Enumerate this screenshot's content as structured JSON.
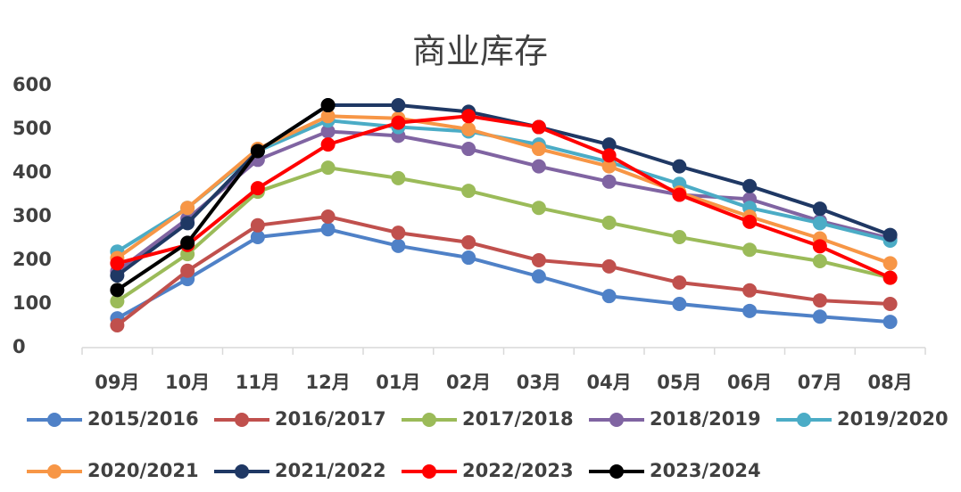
{
  "chart_data": {
    "type": "line",
    "title": "商业库存",
    "categories": [
      "09月",
      "10月",
      "11月",
      "12月",
      "01月",
      "02月",
      "03月",
      "04月",
      "05月",
      "06月",
      "07月",
      "08月"
    ],
    "series": [
      {
        "name": "2015/2016",
        "color": "#4f81c7",
        "values": [
          67,
          157,
          253,
          271,
          233,
          206,
          163,
          118,
          100,
          84,
          71,
          59
        ]
      },
      {
        "name": "2016/2017",
        "color": "#c0504d",
        "values": [
          51,
          176,
          280,
          300,
          263,
          241,
          200,
          186,
          149,
          131,
          108,
          100
        ]
      },
      {
        "name": "2017/2018",
        "color": "#9bbb59",
        "values": [
          106,
          214,
          357,
          412,
          388,
          359,
          320,
          286,
          253,
          224,
          198,
          160
        ]
      },
      {
        "name": "2018/2019",
        "color": "#8064a2",
        "values": [
          175,
          295,
          430,
          495,
          485,
          455,
          415,
          380,
          350,
          340,
          290,
          250
        ]
      },
      {
        "name": "2019/2020",
        "color": "#4bacc6",
        "values": [
          220,
          320,
          450,
          520,
          505,
          495,
          465,
          425,
          375,
          320,
          285,
          245
        ]
      },
      {
        "name": "2020/2021",
        "color": "#f79646",
        "values": [
          205,
          320,
          455,
          530,
          525,
          500,
          455,
          415,
          355,
          300,
          250,
          193
        ]
      },
      {
        "name": "2021/2022",
        "color": "#1f3864",
        "values": [
          165,
          285,
          450,
          555,
          555,
          540,
          505,
          465,
          415,
          370,
          318,
          258
        ]
      },
      {
        "name": "2022/2023",
        "color": "#ff0000",
        "values": [
          193,
          235,
          365,
          465,
          515,
          530,
          505,
          440,
          350,
          288,
          232,
          160
        ]
      },
      {
        "name": "2023/2024",
        "color": "#000000",
        "values": [
          132,
          240,
          450,
          555,
          null,
          null,
          null,
          null,
          null,
          null,
          null,
          null
        ]
      }
    ],
    "ylim": [
      0,
      600
    ],
    "yticks": [
      0,
      100,
      200,
      300,
      400,
      500,
      600
    ],
    "grid": false
  }
}
